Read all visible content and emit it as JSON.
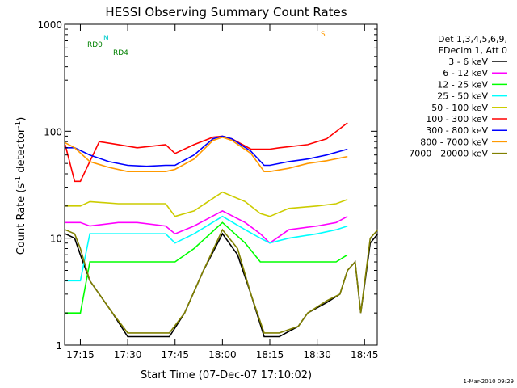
{
  "chart_data": {
    "type": "line",
    "title": "HESSI Observing Summary Count Rates",
    "xlabel": "Start Time (07-Dec-07 17:10:02)",
    "ylabel_main": "Count Rate (s",
    "ylabel_sup1": "-1",
    "ylabel_mid": " detector",
    "ylabel_sup2": "-1",
    "ylabel_end": ")",
    "yscale": "log",
    "ylim": [
      1,
      1000
    ],
    "xlim_minutes": [
      17.167,
      18.817
    ],
    "x_ticks": [
      {
        "label": "17:15",
        "value": 17.25
      },
      {
        "label": "17:30",
        "value": 17.5
      },
      {
        "label": "17:45",
        "value": 17.75
      },
      {
        "label": "18:00",
        "value": 18.0
      },
      {
        "label": "18:15",
        "value": 18.25
      },
      {
        "label": "18:30",
        "value": 18.5
      },
      {
        "label": "18:45",
        "value": 18.75
      }
    ],
    "y_ticks": [
      {
        "label": "1",
        "value": 1
      },
      {
        "label": "10",
        "value": 10
      },
      {
        "label": "100",
        "value": 100
      },
      {
        "label": "1000",
        "value": 1000
      }
    ],
    "legend_title": [
      "Det 1,3,4,5,6,9,",
      "FDecim 1, Att 0"
    ],
    "legend_position": "right",
    "series": [
      {
        "name": "3 - 6 keV",
        "color": "#000000",
        "x": [
          17.17,
          17.22,
          17.25,
          17.3,
          17.42,
          17.5,
          17.6,
          17.72,
          17.8,
          17.9,
          18.0,
          18.08,
          18.15,
          18.22,
          18.3,
          18.4,
          18.45,
          18.55,
          18.62,
          18.66,
          18.7,
          18.73,
          18.78,
          18.82
        ],
        "values": [
          11,
          10,
          7,
          4,
          2,
          1.2,
          1.2,
          1.2,
          2,
          5,
          11,
          7,
          3,
          1.2,
          1.2,
          1.5,
          2,
          2.5,
          3,
          5,
          6,
          2,
          9,
          11
        ]
      },
      {
        "name": "6 - 12 keV",
        "color": "#ff00ff",
        "x": [
          17.17,
          17.25,
          17.3,
          17.45,
          17.55,
          17.7,
          17.75,
          17.85,
          18.0,
          18.12,
          18.2,
          18.25,
          18.35,
          18.5,
          18.6,
          18.66
        ],
        "values": [
          14,
          14,
          13,
          14,
          14,
          13,
          11,
          13,
          18,
          14,
          11,
          9,
          12,
          13,
          14,
          16
        ]
      },
      {
        "name": "12 - 25 keV",
        "color": "#00ff00",
        "x": [
          17.17,
          17.25,
          17.3,
          17.45,
          17.55,
          17.7,
          17.75,
          17.85,
          18.0,
          18.12,
          18.2,
          18.25,
          18.35,
          18.5,
          18.6,
          18.66
        ],
        "values": [
          2,
          2,
          6,
          6,
          6,
          6,
          6,
          8,
          14,
          9,
          6,
          6,
          6,
          6,
          6,
          7
        ]
      },
      {
        "name": "25 - 50 keV",
        "color": "#00ffff",
        "x": [
          17.17,
          17.25,
          17.3,
          17.45,
          17.55,
          17.7,
          17.75,
          17.85,
          18.0,
          18.12,
          18.2,
          18.25,
          18.35,
          18.5,
          18.6,
          18.66
        ],
        "values": [
          4,
          4,
          11,
          11,
          11,
          11,
          9,
          11,
          16,
          12,
          10,
          9,
          10,
          11,
          12,
          13
        ]
      },
      {
        "name": "50 - 100 keV",
        "color": "#cccc00",
        "x": [
          17.17,
          17.25,
          17.3,
          17.45,
          17.55,
          17.7,
          17.75,
          17.85,
          18.0,
          18.12,
          18.2,
          18.25,
          18.35,
          18.5,
          18.6,
          18.66
        ],
        "values": [
          20,
          20,
          22,
          21,
          21,
          21,
          16,
          18,
          27,
          22,
          17,
          16,
          19,
          20,
          21,
          23
        ]
      },
      {
        "name": "100 - 300 keV",
        "color": "#ff0000",
        "x": [
          17.17,
          17.22,
          17.25,
          17.35,
          17.45,
          17.55,
          17.7,
          17.75,
          17.85,
          17.95,
          18.0,
          18.05,
          18.15,
          18.25,
          18.3,
          18.45,
          18.55,
          18.66
        ],
        "values": [
          75,
          34,
          34,
          80,
          75,
          70,
          75,
          62,
          75,
          88,
          90,
          85,
          68,
          68,
          70,
          75,
          85,
          120
        ]
      },
      {
        "name": "300 - 800 keV",
        "color": "#0000ff",
        "x": [
          17.17,
          17.22,
          17.3,
          17.4,
          17.5,
          17.6,
          17.7,
          17.75,
          17.85,
          17.95,
          18.0,
          18.05,
          18.15,
          18.22,
          18.25,
          18.35,
          18.45,
          18.55,
          18.66
        ],
        "values": [
          70,
          70,
          60,
          52,
          48,
          47,
          48,
          48,
          60,
          85,
          90,
          85,
          65,
          48,
          48,
          52,
          55,
          60,
          68
        ]
      },
      {
        "name": "800 - 7000 keV",
        "color": "#ff9900",
        "x": [
          17.17,
          17.22,
          17.3,
          17.4,
          17.5,
          17.6,
          17.7,
          17.75,
          17.85,
          17.95,
          18.0,
          18.05,
          18.15,
          18.22,
          18.25,
          18.35,
          18.45,
          18.55,
          18.66
        ],
        "values": [
          78,
          70,
          52,
          46,
          42,
          42,
          42,
          44,
          55,
          82,
          88,
          82,
          62,
          42,
          42,
          45,
          50,
          53,
          58
        ]
      },
      {
        "name": "7000 - 20000 keV",
        "color": "#808000",
        "x": [
          17.17,
          17.22,
          17.25,
          17.3,
          17.42,
          17.5,
          17.6,
          17.72,
          17.8,
          17.9,
          18.0,
          18.08,
          18.15,
          18.22,
          18.3,
          18.4,
          18.45,
          18.55,
          18.62,
          18.66,
          18.7,
          18.73,
          18.78,
          18.82
        ],
        "values": [
          12,
          11,
          8,
          4,
          2,
          1.3,
          1.3,
          1.3,
          2,
          5,
          12,
          8,
          3,
          1.3,
          1.3,
          1.5,
          2,
          2.6,
          3,
          5,
          6,
          2,
          10,
          12
        ]
      }
    ],
    "annotations": {
      "RD0": "RD0",
      "RD4": "RD4",
      "N": "N",
      "S": "S"
    }
  },
  "footer_date": "1-Mar-2010 09:29"
}
